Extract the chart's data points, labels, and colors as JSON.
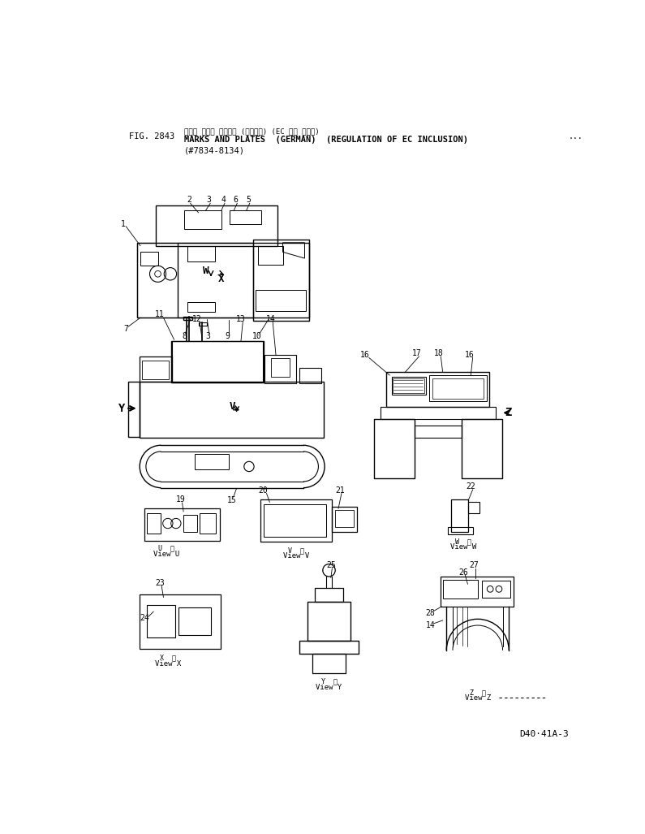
{
  "title_japanese": "マーク および プレート (ドイツ語) (EC 規制 キセイ)",
  "title_english": "MARKS AND PLATES  (GERMAN)  (REGULATION OF EC INCLUSION)",
  "fig_number": "FIG. 2843",
  "part_number": "(#7834-8134)",
  "drawing_number": "D40·41A-3",
  "bg_color": "#ffffff",
  "line_color": "#000000",
  "text_color": "#000000"
}
